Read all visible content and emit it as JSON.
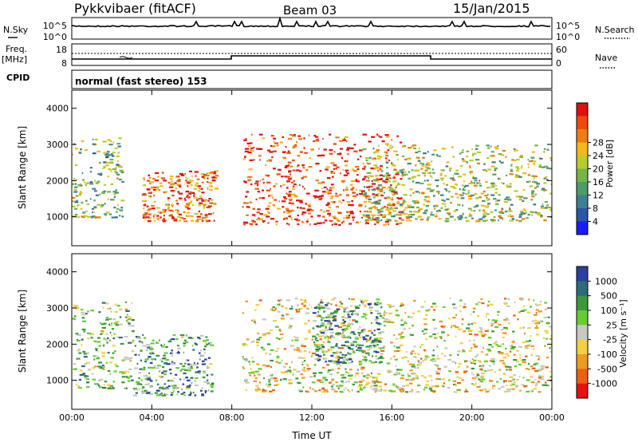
{
  "header": {
    "radar": "Pykkvibaer (fitACF)",
    "beam": "Beam 03",
    "date": "15/Jan/2015"
  },
  "noise_panel": {
    "left_label": "N.Sky",
    "left_ticks": [
      "10^5",
      "10^0"
    ],
    "right_ticks": [
      "10^5",
      "10^0"
    ],
    "right_label": "N.Search"
  },
  "freq_panel": {
    "left_label_1": "Freq.",
    "left_label_2": "[MHz]",
    "left_ticks": [
      "18",
      "8"
    ],
    "right_ticks": [
      "60",
      "0"
    ],
    "right_label": "Nave"
  },
  "cpid": {
    "label": "CPID",
    "value": "normal (fast stereo) 153"
  },
  "chart_data": [
    {
      "type": "heatmap",
      "title": "",
      "xlabel": "",
      "ylabel": "Slant Range [km]",
      "x_ticks": [
        "00:00",
        "04:00",
        "08:00",
        "12:00",
        "16:00",
        "20:00",
        "00:00"
      ],
      "y_ticks": [
        "1000",
        "2000",
        "3000",
        "4000"
      ],
      "xlim_hours": [
        0,
        24
      ],
      "ylim_km": [
        200,
        4500
      ],
      "colorbar": {
        "label": "Power [dB]",
        "ticks": [
          "4",
          "8",
          "12",
          "16",
          "20",
          "24",
          "28"
        ],
        "colors": [
          "#1a1aff",
          "#2957a8",
          "#3f7e95",
          "#4f9a6a",
          "#76b548",
          "#b8cc2c",
          "#f2b81c",
          "#f07c10",
          "#ee4a0a",
          "#e01010"
        ]
      },
      "clusters": [
        {
          "t0": 0.0,
          "t1": 2.5,
          "r0": 1000,
          "r1": 3200,
          "level": 0.45
        },
        {
          "t0": 3.5,
          "t1": 7.2,
          "r0": 900,
          "r1": 2300,
          "level": 0.8
        },
        {
          "t0": 8.5,
          "t1": 16.5,
          "r0": 800,
          "r1": 3300,
          "level": 0.9
        },
        {
          "t0": 14.5,
          "t1": 24.0,
          "r0": 900,
          "r1": 3000,
          "level": 0.5
        }
      ]
    },
    {
      "type": "heatmap",
      "title": "",
      "xlabel": "Time UT",
      "ylabel": "Slant Range [km]",
      "x_ticks": [
        "00:00",
        "04:00",
        "08:00",
        "12:00",
        "16:00",
        "20:00",
        "00:00"
      ],
      "y_ticks": [
        "1000",
        "2000",
        "3000",
        "4000"
      ],
      "xlim_hours": [
        0,
        24
      ],
      "ylim_km": [
        200,
        4500
      ],
      "colorbar": {
        "label": "Velocity [m s⁻¹]",
        "ticks": [
          "1000",
          "500",
          "100",
          "25",
          "-25",
          "-100",
          "-500",
          "-1000"
        ],
        "colors": [
          "#2a3fa0",
          "#2e6b78",
          "#3a9a3a",
          "#66cc33",
          "#c8c8c0",
          "#f4d040",
          "#f09a20",
          "#ee6010",
          "#e81010"
        ]
      },
      "clusters": [
        {
          "t0": 0.0,
          "t1": 3.0,
          "r0": 800,
          "r1": 3200,
          "level": 0.6
        },
        {
          "t0": 3.0,
          "t1": 7.0,
          "r0": 600,
          "r1": 2300,
          "level": 0.7
        },
        {
          "t0": 8.5,
          "t1": 24.0,
          "r0": 700,
          "r1": 3300,
          "level": 0.45
        },
        {
          "t0": 12.0,
          "t1": 15.5,
          "r0": 1500,
          "r1": 3200,
          "level": 0.75
        }
      ]
    }
  ]
}
